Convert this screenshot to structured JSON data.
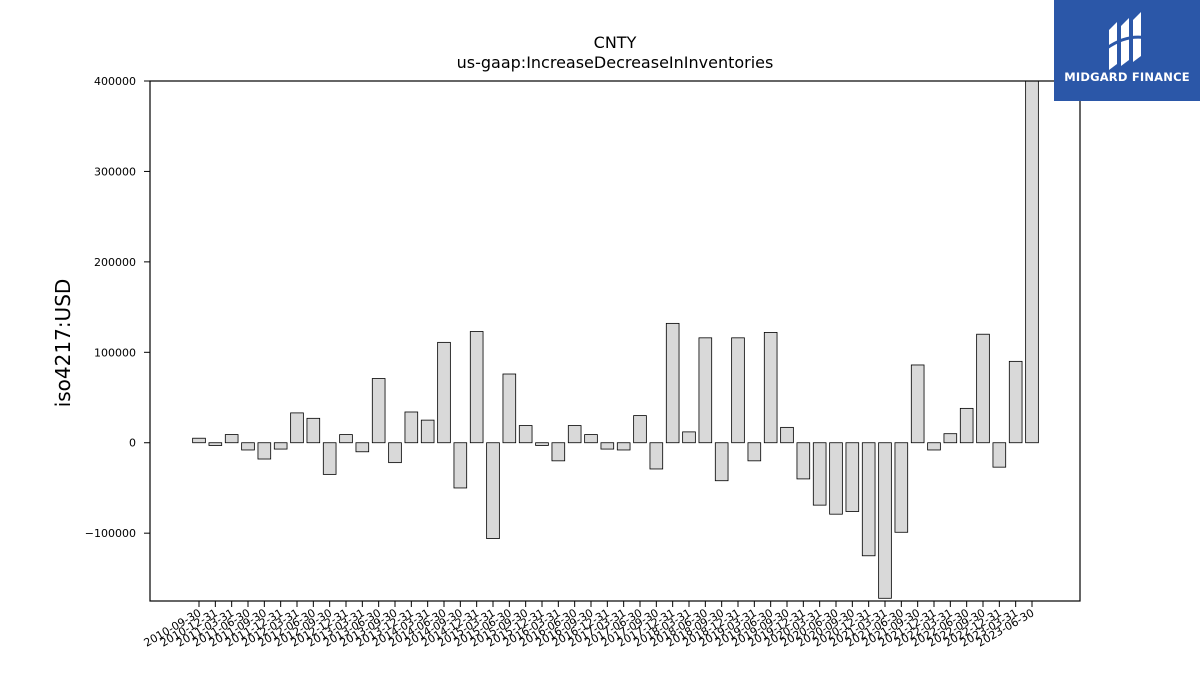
{
  "chart_data": {
    "type": "bar",
    "title": "CNTY",
    "subtitle": "us-gaap:IncreaseDecreaseInInventories",
    "xlabel": "",
    "ylabel": "iso4217:USD",
    "ylim": [
      -175000,
      400000
    ],
    "yticks": [
      -100000,
      0,
      100000,
      200000,
      300000,
      400000
    ],
    "ytick_labels": [
      "−100000",
      "0",
      "100000",
      "200000",
      "300000",
      "400000"
    ],
    "grid": false,
    "bar_color": "#d9d9d9",
    "edge_color": "#000000",
    "categories": [
      "2010-09-30",
      "2010-12-31",
      "2011-03-31",
      "2011-06-30",
      "2011-09-30",
      "2011-12-31",
      "2012-03-31",
      "2012-06-30",
      "2012-09-30",
      "2012-12-31",
      "2013-03-31",
      "2013-06-30",
      "2013-09-30",
      "2013-12-31",
      "2014-03-31",
      "2014-06-30",
      "2014-09-30",
      "2014-12-31",
      "2015-03-31",
      "2015-06-30",
      "2015-09-30",
      "2015-12-31",
      "2016-03-31",
      "2016-06-30",
      "2016-09-30",
      "2016-12-31",
      "2017-03-31",
      "2017-06-30",
      "2017-09-30",
      "2017-12-31",
      "2018-03-31",
      "2018-06-30",
      "2018-09-30",
      "2018-12-31",
      "2019-03-31",
      "2019-06-30",
      "2019-09-30",
      "2019-12-31",
      "2020-03-31",
      "2020-06-30",
      "2020-09-30",
      "2020-12-31",
      "2021-03-31",
      "2021-06-30",
      "2021-09-30",
      "2021-12-31",
      "2022-03-31",
      "2022-06-30",
      "2022-09-30",
      "2022-12-31",
      "2023-03-31",
      "2023-06-30"
    ],
    "values": [
      5000,
      -3000,
      9000,
      -8000,
      -18000,
      -7000,
      33000,
      27000,
      -35000,
      9000,
      -10000,
      71000,
      -22000,
      34000,
      25000,
      111000,
      -50000,
      123000,
      -106000,
      76000,
      19000,
      -3000,
      -20000,
      19000,
      9000,
      -7000,
      -8000,
      30000,
      -29000,
      132000,
      12000,
      116000,
      -42000,
      116000,
      -20000,
      122000,
      17000,
      -40000,
      -69000,
      -79000,
      -76000,
      -125000,
      -172000,
      -99000,
      86000,
      -8000,
      10000,
      38000,
      120000,
      -27000,
      90000,
      400000
    ]
  },
  "logo": {
    "text": "MIDGARD FINANCE",
    "bg_color": "#2b57a8"
  }
}
